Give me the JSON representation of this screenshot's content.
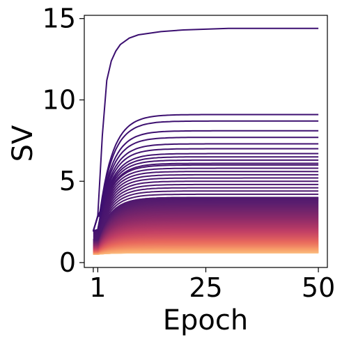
{
  "chart_data": {
    "type": "line",
    "title": "",
    "xlabel": "Epoch",
    "ylabel": "SV",
    "xlim": [
      -2,
      52
    ],
    "ylim": [
      -0.3,
      15.2
    ],
    "xticks": [
      {
        "value": 0,
        "label": ""
      },
      {
        "value": 1,
        "label": "1"
      },
      {
        "value": 25,
        "label": "25"
      },
      {
        "value": 50,
        "label": "50"
      }
    ],
    "yticks": [
      {
        "value": 0,
        "label": "0"
      },
      {
        "value": 5,
        "label": "5"
      },
      {
        "value": 10,
        "label": "10"
      },
      {
        "value": 15,
        "label": "15"
      }
    ],
    "grid": false,
    "legend": "none",
    "colormap": [
      "#3b0f70",
      "#5b1e6e",
      "#8c2a69",
      "#c13f65",
      "#e8685d",
      "#f8a06a",
      "#fbc68a"
    ],
    "series_count": 200,
    "series_final_values_approx": [
      14.4,
      9.1,
      8.7,
      8.1,
      7.7,
      7.3,
      7.0,
      6.7,
      6.5,
      6.3,
      6.1,
      6.0,
      5.8,
      5.6,
      5.4,
      5.2,
      5.0,
      4.8,
      4.6,
      4.4,
      4.2,
      4.0
    ],
    "series_final_min_approx": 0.6,
    "x": [
      0,
      1,
      2,
      3,
      4,
      5,
      6,
      8,
      10,
      15,
      20,
      25,
      30,
      35,
      40,
      45,
      50
    ],
    "top_series": {
      "name": "",
      "values": [
        1.9,
        2.9,
        7.8,
        11.2,
        12.4,
        13.0,
        13.4,
        13.8,
        14.0,
        14.2,
        14.3,
        14.35,
        14.4,
        14.4,
        14.4,
        14.4,
        14.4
      ]
    }
  }
}
